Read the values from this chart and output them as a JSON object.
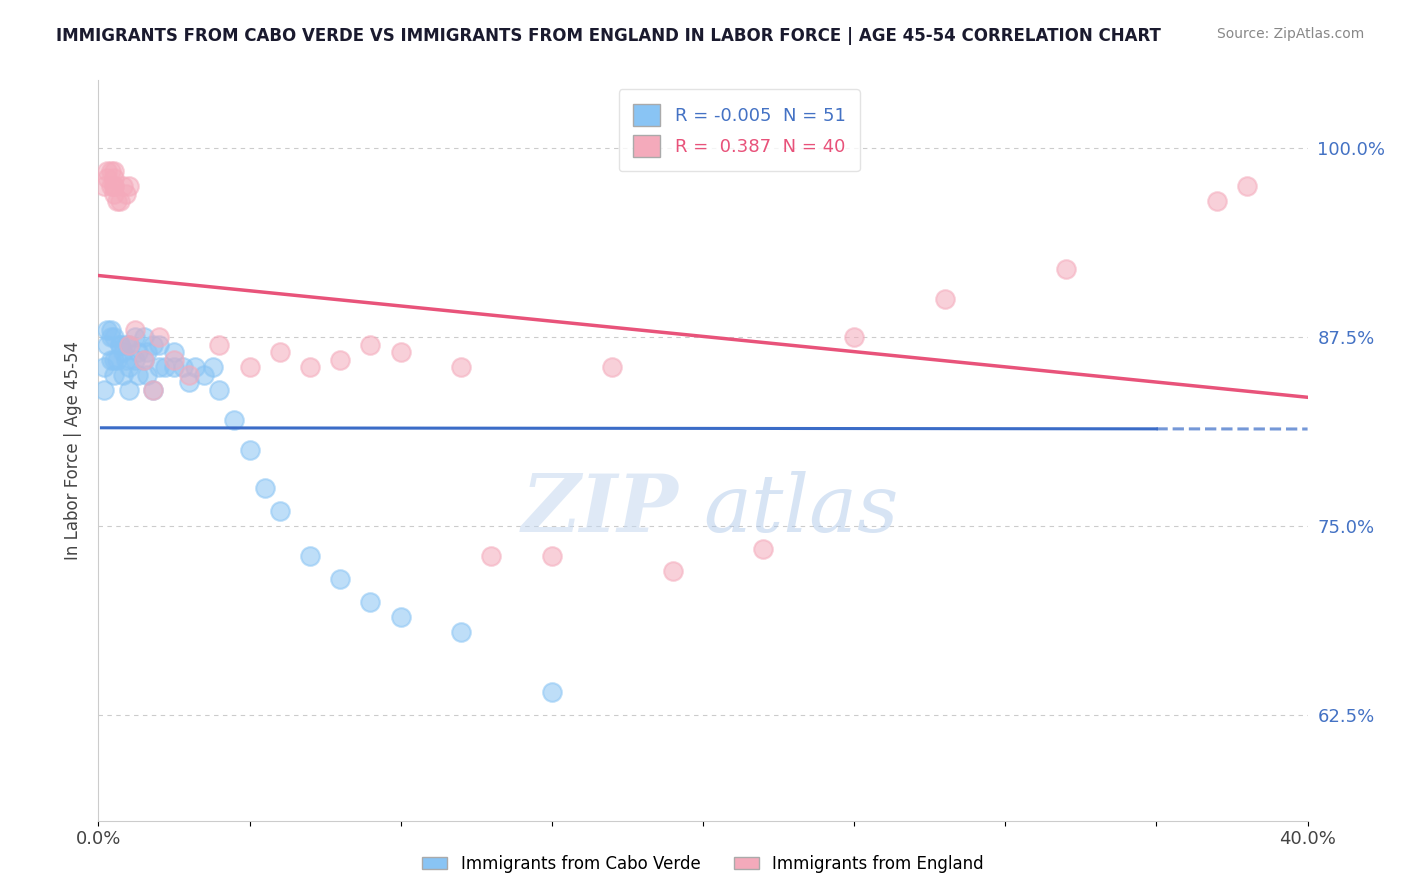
{
  "title": "IMMIGRANTS FROM CABO VERDE VS IMMIGRANTS FROM ENGLAND IN LABOR FORCE | AGE 45-54 CORRELATION CHART",
  "source": "Source: ZipAtlas.com",
  "ylabel": "In Labor Force | Age 45-54",
  "xlim": [
    0.0,
    0.4
  ],
  "ylim": [
    0.555,
    1.045
  ],
  "yticks": [
    0.625,
    0.75,
    0.875,
    1.0
  ],
  "ytick_labels": [
    "62.5%",
    "75.0%",
    "87.5%",
    "100.0%"
  ],
  "xticks": [
    0.0,
    0.05,
    0.1,
    0.15,
    0.2,
    0.25,
    0.3,
    0.35,
    0.4
  ],
  "legend_cabo_R": "-0.005",
  "legend_cabo_N": "51",
  "legend_eng_R": "0.387",
  "legend_eng_N": "40",
  "cabo_color": "#89C4F4",
  "england_color": "#F4AABB",
  "cabo_trend_color": "#3B6CC7",
  "england_trend_color": "#E8537A",
  "watermark_zip": "ZIP",
  "watermark_atlas": "atlas",
  "cabo_x": [
    0.002,
    0.002,
    0.003,
    0.003,
    0.004,
    0.004,
    0.004,
    0.005,
    0.005,
    0.005,
    0.006,
    0.007,
    0.007,
    0.008,
    0.008,
    0.009,
    0.009,
    0.01,
    0.01,
    0.01,
    0.012,
    0.012,
    0.013,
    0.013,
    0.015,
    0.015,
    0.016,
    0.016,
    0.018,
    0.018,
    0.02,
    0.02,
    0.022,
    0.025,
    0.025,
    0.028,
    0.03,
    0.032,
    0.035,
    0.038,
    0.04,
    0.045,
    0.05,
    0.055,
    0.06,
    0.07,
    0.08,
    0.09,
    0.1,
    0.12,
    0.15
  ],
  "cabo_y": [
    0.84,
    0.855,
    0.87,
    0.88,
    0.86,
    0.875,
    0.88,
    0.85,
    0.86,
    0.875,
    0.86,
    0.87,
    0.87,
    0.85,
    0.865,
    0.87,
    0.86,
    0.84,
    0.855,
    0.87,
    0.86,
    0.875,
    0.865,
    0.85,
    0.86,
    0.875,
    0.865,
    0.85,
    0.84,
    0.87,
    0.855,
    0.87,
    0.855,
    0.855,
    0.865,
    0.855,
    0.845,
    0.855,
    0.85,
    0.855,
    0.84,
    0.82,
    0.8,
    0.775,
    0.76,
    0.73,
    0.715,
    0.7,
    0.69,
    0.68,
    0.64
  ],
  "england_x": [
    0.002,
    0.003,
    0.003,
    0.004,
    0.004,
    0.005,
    0.005,
    0.005,
    0.005,
    0.005,
    0.006,
    0.007,
    0.008,
    0.009,
    0.01,
    0.01,
    0.012,
    0.015,
    0.018,
    0.02,
    0.025,
    0.03,
    0.04,
    0.05,
    0.06,
    0.07,
    0.08,
    0.09,
    0.1,
    0.12,
    0.13,
    0.15,
    0.17,
    0.19,
    0.22,
    0.25,
    0.28,
    0.32,
    0.37,
    0.38
  ],
  "england_y": [
    0.975,
    0.985,
    0.98,
    0.975,
    0.985,
    0.975,
    0.98,
    0.975,
    0.985,
    0.97,
    0.965,
    0.965,
    0.975,
    0.97,
    0.87,
    0.975,
    0.88,
    0.86,
    0.84,
    0.875,
    0.86,
    0.85,
    0.87,
    0.855,
    0.865,
    0.855,
    0.86,
    0.87,
    0.865,
    0.855,
    0.73,
    0.73,
    0.855,
    0.72,
    0.735,
    0.875,
    0.9,
    0.92,
    0.965,
    0.975
  ],
  "cabo_trend_solid_end": 0.35,
  "blue_trend_y_intercept": 0.815,
  "blue_trend_slope": -0.002
}
